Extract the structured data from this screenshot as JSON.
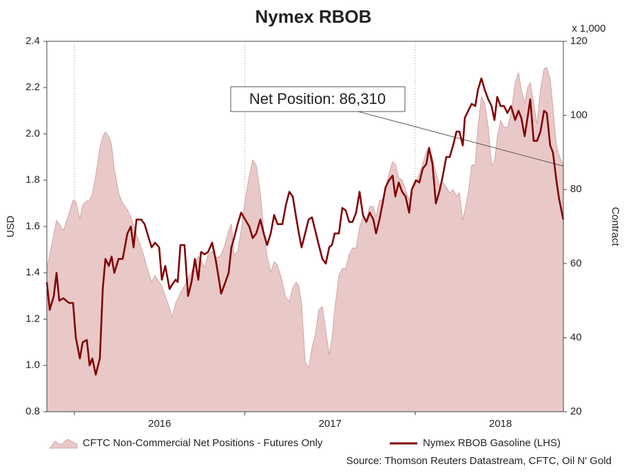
{
  "chart_data": {
    "type": "line",
    "title": "Nymex RBOB",
    "ylabel": "USD",
    "y2label": "Contract",
    "y2unit": "x 1,000",
    "annotation": "Net Position: 86,310",
    "source": "Source: Thomson Reuters Datastream, CFTC, Oil N' Gold",
    "legend": "bottom",
    "grid": true,
    "xlim": [
      2015.838,
      2018.869
    ],
    "xticks": [
      2016,
      2017,
      2018
    ],
    "ylim": [
      0.8,
      2.4
    ],
    "yticks": [
      0.8,
      {
        "value": 1,
        "label": "1.0"
      },
      1.2,
      1.4,
      1.6,
      1.8,
      {
        "value": 2,
        "label": "2.0"
      },
      2.2,
      2.4
    ],
    "y2lim": [
      20,
      120
    ],
    "y2ticks": [
      20,
      40,
      60,
      80,
      100,
      120
    ],
    "x": [
      2015.838,
      2015.855,
      2015.879,
      2015.895,
      2015.911,
      2015.935,
      2015.968,
      2015.992,
      2016.008,
      2016.032,
      2016.048,
      2016.073,
      2016.089,
      2016.105,
      2016.125,
      2016.149,
      2016.166,
      2016.182,
      2016.202,
      2016.218,
      2016.234,
      2016.259,
      2016.283,
      2016.311,
      2016.331,
      2016.347,
      2016.364,
      2016.392,
      2016.412,
      2016.428,
      2016.453,
      2016.473,
      2016.497,
      2016.513,
      2016.533,
      2016.558,
      2016.574,
      2016.594,
      2016.606,
      2016.622,
      2016.646,
      2016.667,
      2016.687,
      2016.707,
      2016.727,
      2016.743,
      2016.764,
      2016.784,
      2016.808,
      2016.828,
      2016.844,
      2016.861,
      2016.881,
      2016.905,
      2016.921,
      2016.937,
      2016.958,
      2016.978,
      2017.002,
      2017.026,
      2017.046,
      2017.067,
      2017.091,
      2017.111,
      2017.131,
      2017.152,
      2017.172,
      2017.192,
      2017.22,
      2017.24,
      2017.261,
      2017.281,
      2017.301,
      2017.317,
      2017.333,
      2017.354,
      2017.374,
      2017.394,
      2017.414,
      2017.434,
      2017.455,
      2017.475,
      2017.495,
      2017.511,
      2017.527,
      2017.552,
      2017.572,
      2017.592,
      2017.612,
      2017.632,
      2017.653,
      2017.673,
      2017.693,
      2017.713,
      2017.733,
      2017.754,
      2017.77,
      2017.79,
      2017.806,
      2017.826,
      2017.846,
      2017.867,
      2017.883,
      2017.903,
      2017.923,
      2017.943,
      2017.964,
      2017.98,
      2018.004,
      2018.024,
      2018.044,
      2018.065,
      2018.081,
      2018.101,
      2018.121,
      2018.141,
      2018.162,
      2018.182,
      2018.202,
      2018.222,
      2018.242,
      2018.259,
      2018.279,
      2018.291,
      2018.311,
      2018.331,
      2018.352,
      2018.368,
      2018.388,
      2018.408,
      2018.428,
      2018.448,
      2018.465,
      2018.481,
      2018.501,
      2018.521,
      2018.541,
      2018.562,
      2018.586,
      2018.606,
      2018.622,
      2018.642,
      2018.659,
      2018.675,
      2018.695,
      2018.715,
      2018.735,
      2018.756,
      2018.772,
      2018.792,
      2018.808,
      2018.828,
      2018.844,
      2018.869
    ],
    "series": [
      {
        "name": "CFTC Non-Commercial Net Positions - Futures Only",
        "type": "area",
        "axis": "y2",
        "color": "#e9c8c8",
        "edge": "#c99a9a",
        "values": [
          58.7,
          62.4,
          68.0,
          71.7,
          70.7,
          68.9,
          73.5,
          77.2,
          76.8,
          72.0,
          75.8,
          76.9,
          77.2,
          78.7,
          83.8,
          91.2,
          94.3,
          95.5,
          94.3,
          92.1,
          85.6,
          79.1,
          76.3,
          74.5,
          72.6,
          70.4,
          68.0,
          64.3,
          61.4,
          58.7,
          55.0,
          56.8,
          55.0,
          54.0,
          51.2,
          47.9,
          45.6,
          49.4,
          50.3,
          52.2,
          54.0,
          55.9,
          57.7,
          60.1,
          62.0,
          60.9,
          59.0,
          62.4,
          63.3,
          61.8,
          61.6,
          62.4,
          64.8,
          68.9,
          70.7,
          62.4,
          63.3,
          68.9,
          77.2,
          83.8,
          88.0,
          86.6,
          79.1,
          68.9,
          62.0,
          57.7,
          60.5,
          59.6,
          55.0,
          50.9,
          49.7,
          53.5,
          55.0,
          54.0,
          49.4,
          33.6,
          31.7,
          37.3,
          41.0,
          47.5,
          48.4,
          41.9,
          35.4,
          39.7,
          47.5,
          56.8,
          58.7,
          58.7,
          62.4,
          64.2,
          64.2,
          69.8,
          72.6,
          71.7,
          75.4,
          75.4,
          72.6,
          76.9,
          77.2,
          80.6,
          84.3,
          87.5,
          86.9,
          83.2,
          82.5,
          80.0,
          77.2,
          78.2,
          81.9,
          84.3,
          86.9,
          90.3,
          91.2,
          88.4,
          84.7,
          81.0,
          81.9,
          80.6,
          79.1,
          80.0,
          78.2,
          79.1,
          71.7,
          74.5,
          79.1,
          86.6,
          86.6,
          96.8,
          105.1,
          103.3,
          96.8,
          86.6,
          87.5,
          94.0,
          98.6,
          96.8,
          96.8,
          100.5,
          108.8,
          111.6,
          107.0,
          103.3,
          107.4,
          108.8,
          103.3,
          97.7,
          107.0,
          112.6,
          112.9,
          109.8,
          102.3,
          92.1,
          89.3,
          86.31
        ]
      },
      {
        "name": "Nymex RBOB Gasoline (LHS)",
        "type": "line",
        "color": "#820000",
        "values": [
          1.36,
          1.24,
          1.3,
          1.4,
          1.28,
          1.29,
          1.27,
          1.27,
          1.12,
          1.03,
          1.1,
          1.11,
          1.0,
          1.03,
          0.96,
          1.03,
          1.33,
          1.46,
          1.43,
          1.47,
          1.4,
          1.46,
          1.46,
          1.57,
          1.6,
          1.51,
          1.63,
          1.63,
          1.61,
          1.57,
          1.51,
          1.53,
          1.51,
          1.37,
          1.43,
          1.33,
          1.35,
          1.37,
          1.36,
          1.52,
          1.52,
          1.3,
          1.36,
          1.46,
          1.37,
          1.49,
          1.48,
          1.49,
          1.53,
          1.46,
          1.39,
          1.31,
          1.35,
          1.4,
          1.51,
          1.55,
          1.61,
          1.66,
          1.63,
          1.6,
          1.55,
          1.57,
          1.63,
          1.57,
          1.52,
          1.57,
          1.65,
          1.61,
          1.61,
          1.69,
          1.75,
          1.73,
          1.64,
          1.57,
          1.51,
          1.57,
          1.63,
          1.64,
          1.58,
          1.52,
          1.46,
          1.44,
          1.51,
          1.52,
          1.57,
          1.57,
          1.68,
          1.67,
          1.62,
          1.62,
          1.66,
          1.75,
          1.65,
          1.62,
          1.66,
          1.63,
          1.57,
          1.63,
          1.69,
          1.77,
          1.8,
          1.82,
          1.73,
          1.79,
          1.75,
          1.73,
          1.66,
          1.76,
          1.8,
          1.79,
          1.85,
          1.87,
          1.94,
          1.87,
          1.7,
          1.75,
          1.82,
          1.9,
          1.9,
          1.95,
          2.01,
          2.01,
          1.95,
          2.07,
          2.1,
          2.13,
          2.12,
          2.19,
          2.24,
          2.19,
          2.15,
          2.12,
          2.06,
          2.16,
          2.12,
          2.12,
          2.09,
          2.12,
          2.06,
          2.1,
          2.07,
          1.99,
          2.07,
          2.15,
          1.97,
          1.97,
          2.01,
          2.1,
          2.09,
          1.95,
          1.92,
          1.8,
          1.72,
          1.63
        ]
      }
    ]
  }
}
